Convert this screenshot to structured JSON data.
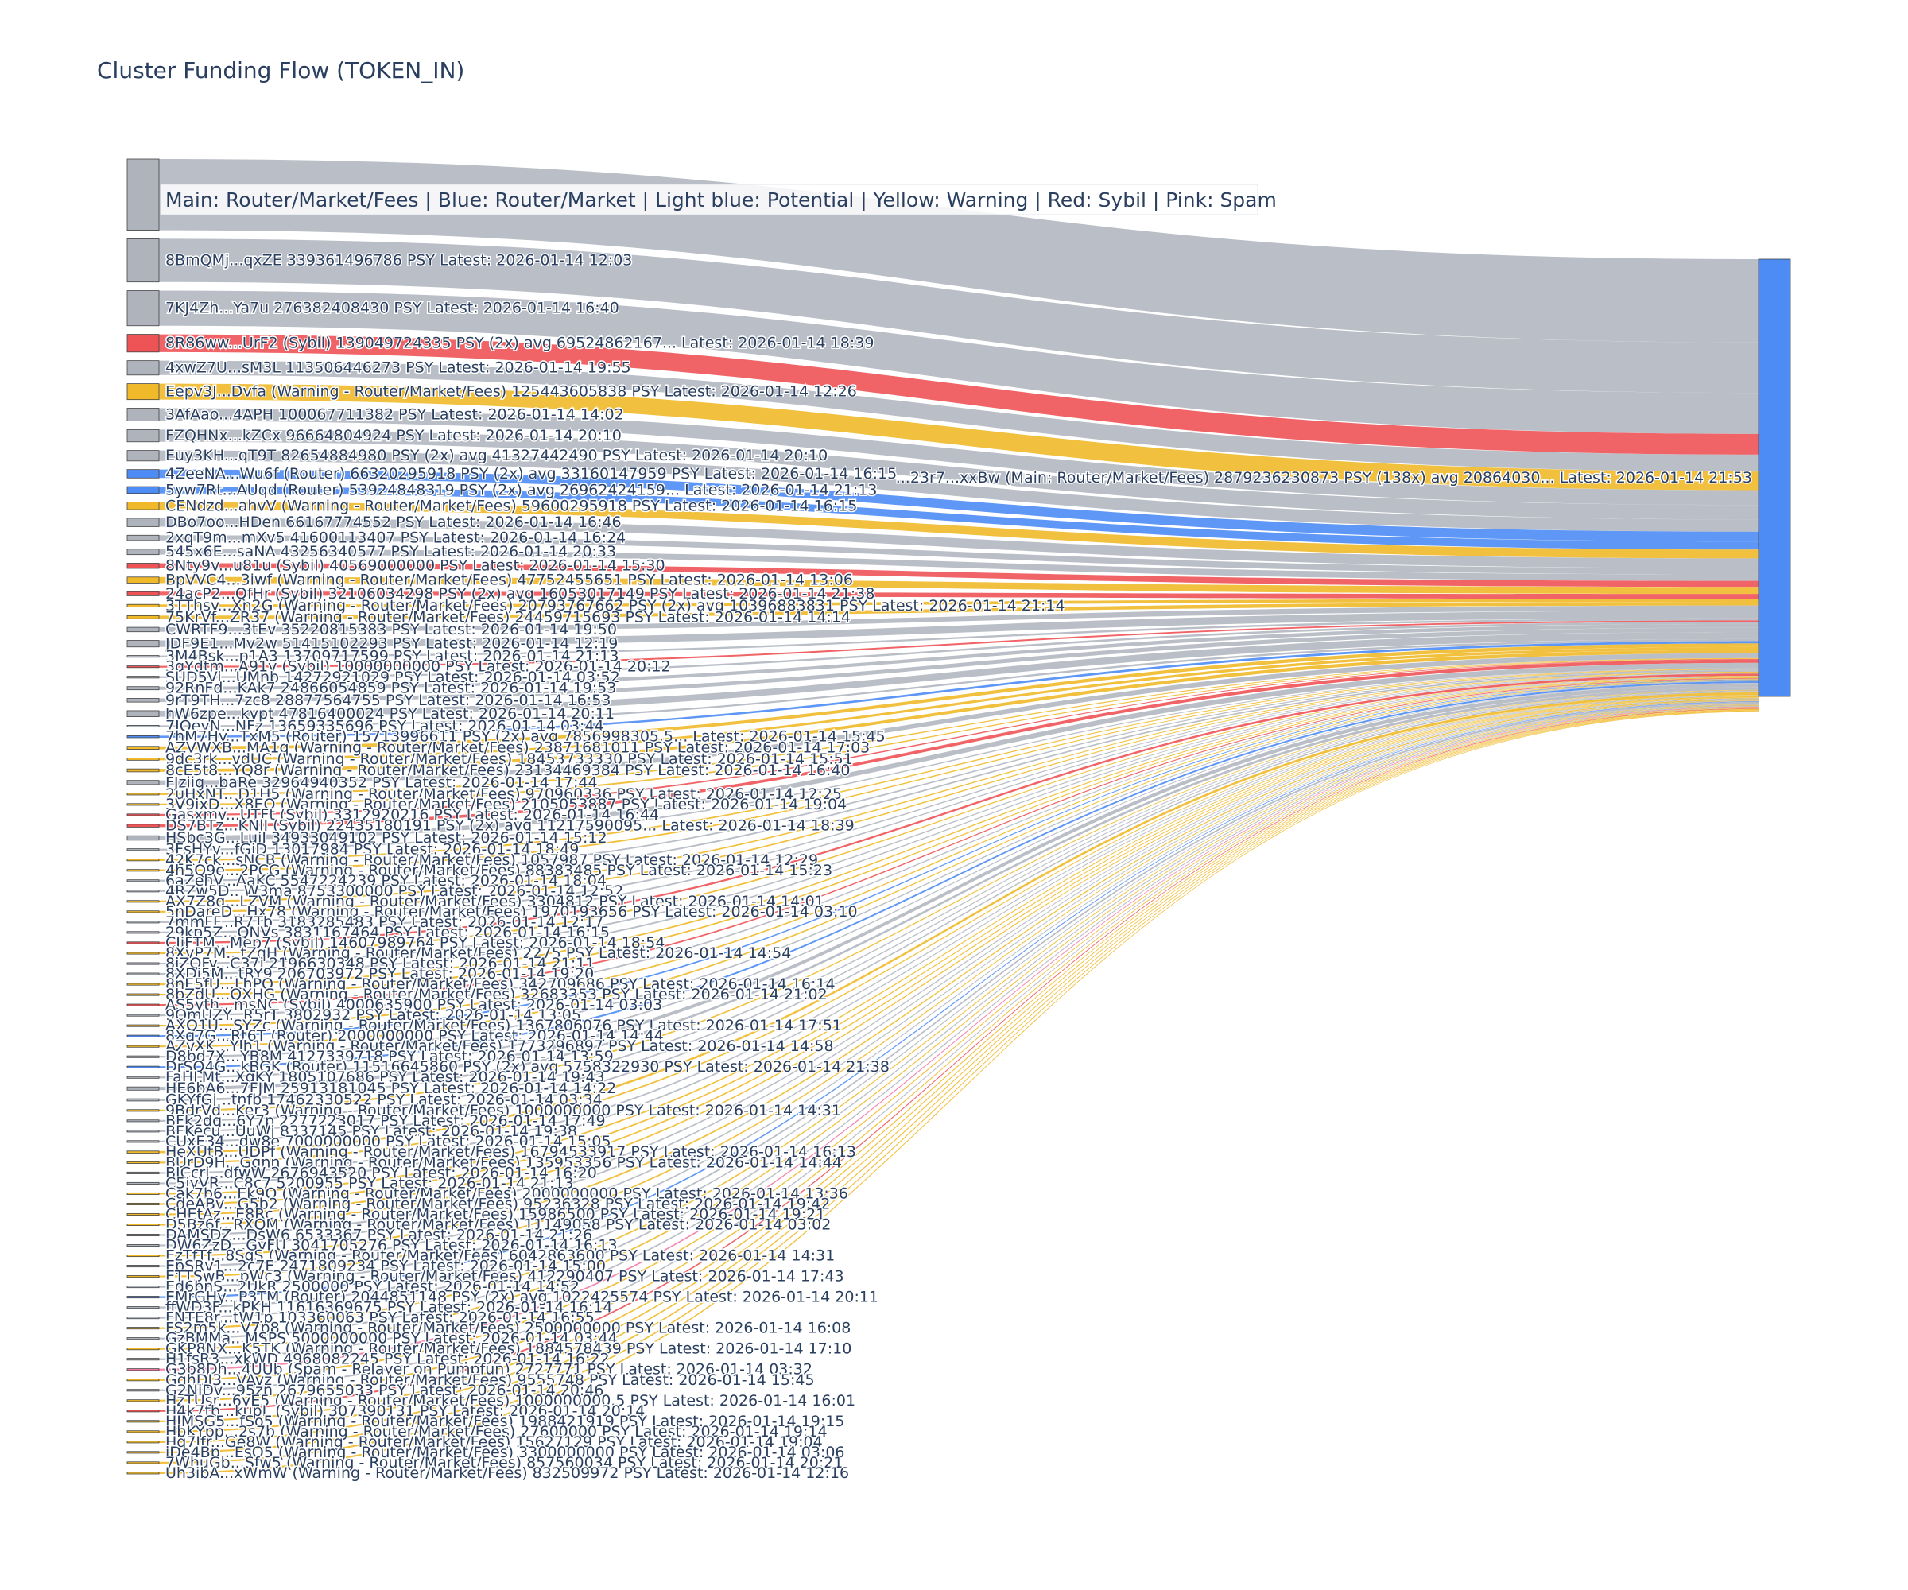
{
  "chart_data": {
    "type": "sankey",
    "title": "Cluster Funding Flow (TOKEN_IN)",
    "legend_annotation": "Main: Router/Market/Fees  |  Blue: Router/Market | Light blue: Potential | Yellow: Warning | Red: Sybil | Pink: Spam",
    "colors": {
      "main": "#aeb3bc",
      "router": "#4e8cf5",
      "warning": "#efb929",
      "sybil": "#ee5356",
      "spam": "#f47ba6",
      "sink": "#4e8cf5"
    },
    "sink": {
      "label": "...23r7...xxBw (Main: Router/Market/Fees) 2879236230873 PSY (138x) avg 20864030... Latest: 2026-01-14 21:53",
      "category": "router"
    },
    "nodes": [
      {
        "label": "",
        "value": 560000000000,
        "category": "main"
      },
      {
        "label": "8BmQMj...qxZE 339361496786 PSY Latest: 2026-01-14 12:03",
        "value": 339361496786,
        "category": "main"
      },
      {
        "label": "7KJ4Zh...Ya7u 276382408430 PSY Latest: 2026-01-14 16:40",
        "value": 276382408430,
        "category": "main"
      },
      {
        "label": "8R86ww...UrF2 (Sybil) 139049724335 PSY (2x) avg 69524862167... Latest: 2026-01-14 18:39",
        "value": 139049724335,
        "category": "sybil"
      },
      {
        "label": "4xwZ7U...sM3L 113506446273 PSY Latest: 2026-01-14 19:55",
        "value": 113506446273,
        "category": "main"
      },
      {
        "label": "Eepv3J...Dvfa (Warning - Router/Market/Fees) 125443605838 PSY Latest: 2026-01-14 12:26",
        "value": 125443605838,
        "category": "warning"
      },
      {
        "label": "3AfAao...4APH 100067711382 PSY Latest: 2026-01-14 14:02",
        "value": 100067711382,
        "category": "main"
      },
      {
        "label": "FZQHNx...kZCx 96664804924 PSY Latest: 2026-01-14 20:10",
        "value": 96664804924,
        "category": "main"
      },
      {
        "label": "Euy3KH...qT9T 82654884980 PSY (2x) avg 41327442490 PSY Latest: 2026-01-14 20:10",
        "value": 82654884980,
        "category": "main"
      },
      {
        "label": "4ZeeNA...Wu6f (Router) 66320295918 PSY (2x) avg 33160147959 PSY Latest: 2026-01-14 16:15",
        "value": 66320295918,
        "category": "router"
      },
      {
        "label": "5yw7Rt...AUqd (Router) 53924848319 PSY (2x) avg 26962424159... Latest: 2026-01-14 21:13",
        "value": 53924848319,
        "category": "router"
      },
      {
        "label": "CENdzd...ahvV (Warning - Router/Market/Fees) 59600295918 PSY Latest: 2026-01-14 16:15",
        "value": 59600295918,
        "category": "warning"
      },
      {
        "label": "DBo7oo...HDen 66167774552 PSY Latest: 2026-01-14 16:46",
        "value": 66167774552,
        "category": "main"
      },
      {
        "label": "2xqT9m...mXv5 41600113407 PSY Latest: 2026-01-14 16:24",
        "value": 41600113407,
        "category": "main"
      },
      {
        "label": "545x6E...saNA 43256340577 PSY Latest: 2026-01-14 20:33",
        "value": 43256340577,
        "category": "main"
      },
      {
        "label": "8Nty9v...u81u (Sybil) 40569000000 PSY Latest: 2026-01-14 15:30",
        "value": 40569000000,
        "category": "sybil"
      },
      {
        "label": "BpVVC4...3iwf (Warning - Router/Market/Fees) 47752455651 PSY Latest: 2026-01-14 13:06",
        "value": 47752455651,
        "category": "warning"
      },
      {
        "label": "24acP2...QfHr (Sybil) 32106034298 PSY (2x) avg 16053017149 PSY Latest: 2026-01-14 21:38",
        "value": 32106034298,
        "category": "sybil"
      },
      {
        "label": "3TThsy...Xn2G (Warning - Router/Market/Fees) 20793767662 PSY (2x) avg 10396883831 PSY Latest: 2026-01-14 21:14",
        "value": 20793767662,
        "category": "warning"
      },
      {
        "label": "75KrVf...ZR37 (Warning - Router/Market/Fees) 24459715693 PSY Latest: 2026-01-14 14:14",
        "value": 24459715693,
        "category": "warning"
      },
      {
        "label": "CWRTF9...3tEv 35220815383 PSY Latest: 2026-01-14 19:50",
        "value": 35220815383,
        "category": "main"
      },
      {
        "label": "JDF9E1...Mv2w 51415102293 PSY Latest: 2026-01-14 12:19",
        "value": 51415102293,
        "category": "main"
      },
      {
        "label": "3M4Bsk...p1A3 13709717599 PSY Latest: 2026-01-14 21:13",
        "value": 13709717599,
        "category": "main"
      },
      {
        "label": "3qYdtm...A91v (Sybil) 10000000000 PSY Latest: 2026-01-14 20:12",
        "value": 10000000000,
        "category": "sybil"
      },
      {
        "label": "SUD5Vi...UMnb 14272921029 PSY Latest: 2026-01-14 03:52",
        "value": 14272921029,
        "category": "main"
      },
      {
        "label": "92RnFd...KAk7 24866054859 PSY Latest: 2026-01-14 19:53",
        "value": 24866054859,
        "category": "main"
      },
      {
        "label": "9rT9TH...7zc8 28877564755 PSY Latest: 2026-01-14 16:53",
        "value": 28877564755,
        "category": "main"
      },
      {
        "label": "hW6zpe...kvpt 47816400024 PSY Latest: 2026-01-14 20:11",
        "value": 47816400024,
        "category": "main"
      },
      {
        "label": "7JQeyN...NFz 13659335696 PSY Latest: 2026-01-14 03:44",
        "value": 13659335696,
        "category": "main"
      },
      {
        "label": "7hM7Hy...TxM5 (Router) 15713996611 PSY (2x) avg 7856998305.5... Latest: 2026-01-14 15:45",
        "value": 15713996611,
        "category": "router"
      },
      {
        "label": "AZVWXB...MA1q (Warning - Router/Market/Fees) 23871681011 PSY Latest: 2026-01-14 17:03",
        "value": 23871681011,
        "category": "warning"
      },
      {
        "label": "9dc3rk...vdUC (Warning - Router/Market/Fees) 18453733330 PSY Latest: 2026-01-14 15:51",
        "value": 18453733330,
        "category": "warning"
      },
      {
        "label": "8cE5t8...YQ8r (Warning - Router/Market/Fees) 23134469384 PSY Latest: 2026-01-14 16:40",
        "value": 23134469384,
        "category": "warning"
      },
      {
        "label": "FJziig...baRe 32964940352 PSY Latest: 2026-01-14 17:44",
        "value": 32964940352,
        "category": "main"
      },
      {
        "label": "2uHxNT...D1H5 (Warning - Router/Market/Fees) 970960336 PSY Latest: 2026-01-14 12:25",
        "value": 970960336,
        "category": "warning"
      },
      {
        "label": "3V9ixD...X8EQ (Warning - Router/Market/Fees) 2105053887 PSY Latest: 2026-01-14 19:04",
        "value": 2105053887,
        "category": "warning"
      },
      {
        "label": "Gasxmv...UTFt (Sybil) 3312920216 PSY Latest: 2026-01-14 16:44",
        "value": 3312920216,
        "category": "sybil"
      },
      {
        "label": "DS7BTz...KNlJ (Sybil) 22435180191 PSY (2x) avg 11217590095... Latest: 2026-01-14 18:39",
        "value": 22435180191,
        "category": "sybil"
      },
      {
        "label": "HSbc3G...LujJ 34933049102 PSY Latest: 2026-01-14 15:12",
        "value": 34933049102,
        "category": "main"
      },
      {
        "label": "3FsHYv...fGiD 13017984 PSY Latest: 2026-01-14 18:49",
        "value": 13017984,
        "category": "main"
      },
      {
        "label": "42K7ck...sNCB (Warning - Router/Market/Fees) 1057987 PSY Latest: 2026-01-14 12:29",
        "value": 1057987,
        "category": "warning"
      },
      {
        "label": "4h5Q9e...2PCG (Warning - Router/Market/Fees) 88383485 PSY Latest: 2026-01-14 15:23",
        "value": 88383485,
        "category": "warning"
      },
      {
        "label": "6aZehV...AaKC 5547224239 PSY Latest: 2026-01-14 18:04",
        "value": 5547224239,
        "category": "main"
      },
      {
        "label": "4RZw5D...W3ma 8753300000 PSY Latest: 2026-01-14 12:52",
        "value": 8753300000,
        "category": "main"
      },
      {
        "label": "AX7Z8q...LZVM (Warning - Router/Market/Fees) 3304812 PSY Latest: 2026-01-14 14:01",
        "value": 3304812,
        "category": "warning"
      },
      {
        "label": "5nDareD...Hx78 (Warning - Router/Market/Fees) 1970193656 PSY Latest: 2026-01-14 03:10",
        "value": 1970193656,
        "category": "warning"
      },
      {
        "label": "7mmFF...R7Tb 3183285483 PSY Latest: 2026-01-14 12:17",
        "value": 3183285483,
        "category": "main"
      },
      {
        "label": "29kp5Z...QNVs 3831167464 PSY Latest: 2026-01-14 16:15",
        "value": 3831167464,
        "category": "main"
      },
      {
        "label": "CJjFTM...Mep7 (Sybil) 14607989764 PSY Latest: 2026-01-14 18:54",
        "value": 14607989764,
        "category": "sybil"
      },
      {
        "label": "8XvP7M...tZqH (Warning - Router/Market/Fees) 2275 PSY Latest: 2026-01-14 14:54",
        "value": 2275,
        "category": "warning"
      },
      {
        "label": "8jZQFy...C37i 2196630348 PSY Latest: 2026-01-14 21:11",
        "value": 2196630348,
        "category": "main"
      },
      {
        "label": "8XDi5M...tRY9 206703972 PSY Latest: 2026-01-14 19:20",
        "value": 206703972,
        "category": "main"
      },
      {
        "label": "8nE5fU...LhPQ (Warning - Router/Market/Fees) 342709686 PSY Latest: 2026-01-14 16:14",
        "value": 342709686,
        "category": "warning"
      },
      {
        "label": "8bZdU...QXHG (Warning - Router/Market/Fees) 32683353 PSY Latest: 2026-01-14 21:02",
        "value": 32683353,
        "category": "warning"
      },
      {
        "label": "AS5yth...msNC (Sybil) 4000635900 PSY Latest: 2026-01-14 03:03",
        "value": 4000635900,
        "category": "sybil"
      },
      {
        "label": "9QmUZY...R5rT 3802932 PSY Latest: 2026-01-14 13:05",
        "value": 3802932,
        "category": "main"
      },
      {
        "label": "AXQ1U...SYZc (Warning - Router/Market/Fees) 1367806076 PSY Latest: 2026-01-14 17:51",
        "value": 1367806076,
        "category": "warning"
      },
      {
        "label": "8Xq7G...Rt6T (Router) 2000000000 PSY Latest: 2026-01-14 14:44",
        "value": 2000000000,
        "category": "router"
      },
      {
        "label": "AZvXK...Ylh1 (Warning - Router/Market/Fees) 1773296897 PSY Latest: 2026-01-14 14:58",
        "value": 1773296897,
        "category": "warning"
      },
      {
        "label": "D8bd7X...YB8M 4127339718 PSY Latest: 2026-01-14 13:59",
        "value": 4127339718,
        "category": "main"
      },
      {
        "label": "DrSQ4G...kBGK (Router) 11516645860 PSY (2x) avg 5758322930 PSY Latest: 2026-01-14 21:38",
        "value": 11516645860,
        "category": "router"
      },
      {
        "label": "FaHLMt...XqKY 1805107686 PSY Latest: 2026-01-14 19:43",
        "value": 1805107686,
        "category": "main"
      },
      {
        "label": "HE6bA6...7FJM 25913181045 PSY Latest: 2026-01-14 14:22",
        "value": 25913181045,
        "category": "main"
      },
      {
        "label": "GKYfGj...tnfb 17462330522 PSY Latest: 2026-01-14 03:34",
        "value": 17462330522,
        "category": "main"
      },
      {
        "label": "9BdrVd...Ker3 (Warning - Router/Market/Fees) 1000000000 PSY Latest: 2026-01-14 14:31",
        "value": 1000000000,
        "category": "warning"
      },
      {
        "label": "BFk2dq...6Y7p 2277223017 PSY Latest: 2026-01-14 17:49",
        "value": 2277223017,
        "category": "main"
      },
      {
        "label": "BFKecu...UuWj 8337145 PSY Latest: 2026-01-14 19:38",
        "value": 8337145,
        "category": "main"
      },
      {
        "label": "CUxE34...dw8e 7000000000 PSY Latest: 2026-01-14 15:05",
        "value": 7000000000,
        "category": "main"
      },
      {
        "label": "HeXUtB...UDPf (Warning - Router/Market/Fees) 16794533917 PSY Latest: 2026-01-14 16:13",
        "value": 16794533917,
        "category": "warning"
      },
      {
        "label": "BUrD9H...Ggnn (Warning - Router/Market/Fees) 135953356 PSY Latest: 2026-01-14 14:44",
        "value": 135953356,
        "category": "warning"
      },
      {
        "label": "BJCcrj...dfwW 2676943520 PSY Latest: 2026-01-14 16:20",
        "value": 2676943520,
        "category": "main"
      },
      {
        "label": "C5jyVR...C8c7 5200955 PSY Latest: 2026-01-14 21:13",
        "value": 5200955,
        "category": "main"
      },
      {
        "label": "Cak7b6...Ek9Q (Warning - Router/Market/Fees) 2000000000 PSY Latest: 2026-01-14 13:36",
        "value": 2000000000,
        "category": "warning"
      },
      {
        "label": "CdeABv...G5b2 (Warning - Router/Market/Fees) 95236328 PSY Latest: 2026-01-14 19:42",
        "value": 95236328,
        "category": "warning"
      },
      {
        "label": "CHEtAz...E8Rc (Warning - Router/Market/Fees) 15986500 PSY Latest: 2026-01-14 19:21",
        "value": 15986500,
        "category": "warning"
      },
      {
        "label": "D5Bz6f...RXQM (Warning - Router/Market/Fees) 11149058 PSY Latest: 2026-01-14 03:02",
        "value": 11149058,
        "category": "warning"
      },
      {
        "label": "DAMSDZ...DsW6 6533367 PSY Latest: 2026-01-14 21:26",
        "value": 6533367,
        "category": "main"
      },
      {
        "label": "DW6ZzD...GvFU 3041705276 PSY Latest: 2026-01-14 16:13",
        "value": 3041705276,
        "category": "main"
      },
      {
        "label": "EzTfTf...8SgS (Warning - Router/Market/Fees) 6042863600 PSY Latest: 2026-01-14 14:31",
        "value": 6042863600,
        "category": "warning"
      },
      {
        "label": "EpSRv1...2c7E 2471809234 PSY Latest: 2026-01-14 15:00",
        "value": 2471809234,
        "category": "main"
      },
      {
        "label": "ETTSwB...pWc3 (Warning - Router/Market/Fees) 412290407 PSY Latest: 2026-01-14 17:43",
        "value": 412290407,
        "category": "warning"
      },
      {
        "label": "Ed6bnS...2UkR 2500000 PSY Latest: 2026-01-14 14:52",
        "value": 2500000,
        "category": "main"
      },
      {
        "label": "EMrGHy...P3TM (Router) 2044851148 PSY (2x) avg 1022425574 PSY Latest: 2026-01-14 20:11",
        "value": 2044851148,
        "category": "router"
      },
      {
        "label": "ffWD3F...kPKH 11616369675 PSY Latest: 2026-01-14 16:14",
        "value": 11616369675,
        "category": "main"
      },
      {
        "label": "FNTE8r...tW1p 103360063 PSY Latest: 2026-01-14 16:55",
        "value": 103360063,
        "category": "main"
      },
      {
        "label": "FS2m5k...V7p8 (Warning - Router/Market/Fees) 2500000000 PSY Latest: 2026-01-14 16:08",
        "value": 2500000000,
        "category": "warning"
      },
      {
        "label": "GzBMMa...MSPS 5000000000 PSY Latest: 2026-01-14 03:44",
        "value": 5000000000,
        "category": "main"
      },
      {
        "label": "GKP8NX...K5TK (Warning - Router/Market/Fees) 1884578439 PSY Latest: 2026-01-14 17:10",
        "value": 1884578439,
        "category": "warning"
      },
      {
        "label": "H1fsR3...xkWD 4968082245 PSY Latest: 2026-01-14 16:22",
        "value": 4968082245,
        "category": "main"
      },
      {
        "label": "G3b8Dh...4UUb (Spam - Relayer on Pumpfun) 2727771 PSY Latest: 2026-01-14 03:32",
        "value": 2727771,
        "category": "spam"
      },
      {
        "label": "GqhDJ3...VAvz (Warning - Router/Market/Fees) 9555748 PSY Latest: 2026-01-14 15:45",
        "value": 9555748,
        "category": "warning"
      },
      {
        "label": "G2NiDv...95zn 2679655033 PSY Latest: 2026-01-14 20:46",
        "value": 2679655033,
        "category": "main"
      },
      {
        "label": "HzTUsr...6yE5 (Warning - Router/Market/Fees) 1000000000.5 PSY Latest: 2026-01-14 16:01",
        "value": 1000000000.5,
        "category": "warning"
      },
      {
        "label": "H4k7tb...kupL (Sybil) 307390131 PSY Latest: 2026-01-14 20:14",
        "value": 307390131,
        "category": "sybil"
      },
      {
        "label": "HJMSG5...fSo5 (Warning - Router/Market/Fees) 1988421919 PSY Latest: 2026-01-14 19:15",
        "value": 1988421919,
        "category": "warning"
      },
      {
        "label": "HbKYpp...2s7b (Warning - Router/Market/Fees) 27600000 PSY Latest: 2026-01-14 19:14",
        "value": 27600000,
        "category": "warning"
      },
      {
        "label": "Hq7Jfr...Ge8W (Warning - Router/Market/Fees) 15627129 PSY Latest: 2026-01-14 19:04",
        "value": 15627129,
        "category": "warning"
      },
      {
        "label": "iDe4Bp...EsQ5 (Warning - Router/Market/Fees) 3300000000 PSY Latest: 2026-01-14 03:06",
        "value": 3300000000,
        "category": "warning"
      },
      {
        "label": "7WhuGb...Sfw5 (Warning - Router/Market/Fees) 857560034 PSY Latest: 2026-01-14 20:21",
        "value": 857560034,
        "category": "warning"
      },
      {
        "label": "Uh3ibA...xWmW (Warning - Router/Market/Fees) 832509972 PSY Latest: 2026-01-14 12:16",
        "value": 832509972,
        "category": "warning"
      }
    ]
  }
}
